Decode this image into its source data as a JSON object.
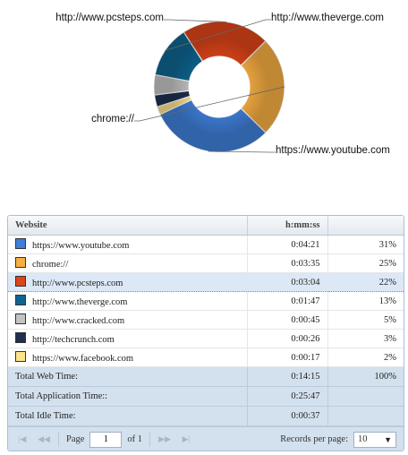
{
  "chart_data": {
    "type": "pie",
    "donut": true,
    "categories": [
      "https://www.youtube.com",
      "chrome://",
      "http://www.pcsteps.com",
      "http://www.theverge.com",
      "http://www.cracked.com",
      "http://techcrunch.com",
      "https://www.facebook.com"
    ],
    "values": [
      31,
      25,
      22,
      13,
      5,
      3,
      2
    ],
    "colors": [
      "#3f7fd9",
      "#f7ae42",
      "#dd4419",
      "#0e6490",
      "#c3c3c3",
      "#1f2f50",
      "#fde48a"
    ],
    "callouts": [
      {
        "text": "http://www.pcsteps.com",
        "index": 2
      },
      {
        "text": "http://www.theverge.com",
        "index": 3
      },
      {
        "text": "chrome://",
        "index": 1
      },
      {
        "text": "https://www.youtube.com",
        "index": 0
      }
    ]
  },
  "table": {
    "headers": [
      "Website",
      "h:mm:ss",
      ""
    ],
    "rows": [
      {
        "site": "https://www.youtube.com",
        "time": "0:04:21",
        "pct": "31%",
        "color": "#3f7fd9"
      },
      {
        "site": "chrome://",
        "time": "0:03:35",
        "pct": "25%",
        "color": "#f7ae42"
      },
      {
        "site": "http://www.pcsteps.com",
        "time": "0:03:04",
        "pct": "22%",
        "color": "#dd4419"
      },
      {
        "site": "http://www.theverge.com",
        "time": "0:01:47",
        "pct": "13%",
        "color": "#0e6490"
      },
      {
        "site": "http://www.cracked.com",
        "time": "0:00:45",
        "pct": "5%",
        "color": "#c3c3c3"
      },
      {
        "site": "http://techcrunch.com",
        "time": "0:00:26",
        "pct": "3%",
        "color": "#1f2f50"
      },
      {
        "site": "https://www.facebook.com",
        "time": "0:00:17",
        "pct": "2%",
        "color": "#fde48a"
      }
    ],
    "selected_index": 2,
    "totals": [
      {
        "label": "Total Web Time:",
        "time": "0:14:15",
        "pct": "100%"
      },
      {
        "label": "Total Application Time::",
        "time": "0:25:47",
        "pct": ""
      },
      {
        "label": "Total Idle Time:",
        "time": "0:00:37",
        "pct": ""
      }
    ]
  },
  "pager": {
    "page_label": "Page",
    "page_value": "1",
    "of_label": "of",
    "total_pages": "1",
    "records_label": "Records per page:",
    "records_value": "10"
  }
}
